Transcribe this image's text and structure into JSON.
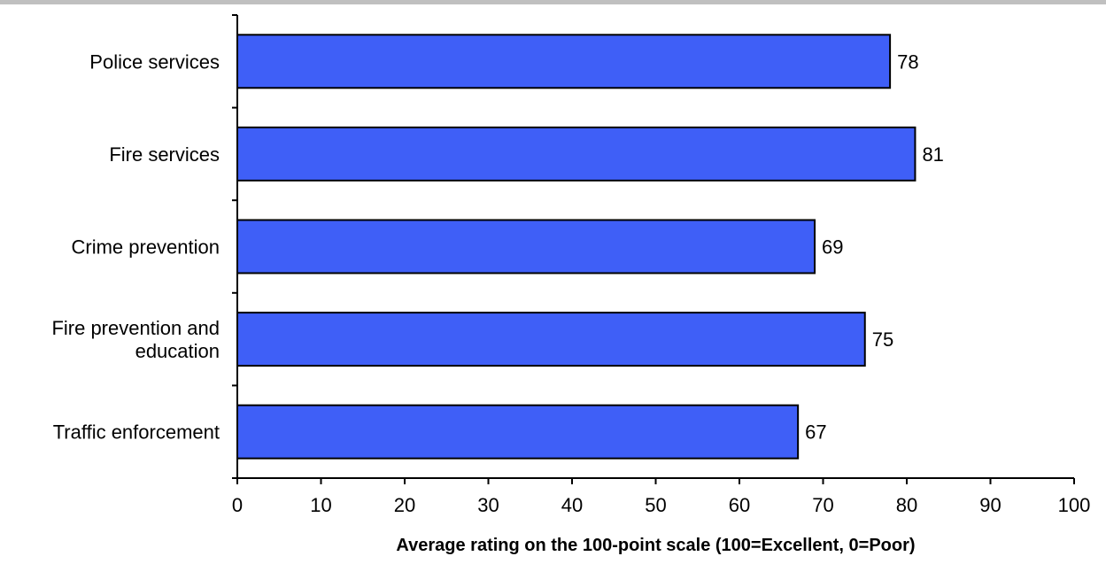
{
  "chart_data": {
    "type": "bar",
    "orientation": "horizontal",
    "categories": [
      "Police services",
      "Fire services",
      "Crime prevention",
      "Fire prevention and education",
      "Traffic enforcement"
    ],
    "category_lines": [
      [
        "Police services"
      ],
      [
        "Fire services"
      ],
      [
        "Crime prevention"
      ],
      [
        "Fire prevention and",
        "education"
      ],
      [
        "Traffic enforcement"
      ]
    ],
    "values": [
      78,
      81,
      69,
      75,
      67
    ],
    "value_labels": [
      "78",
      "81",
      "69",
      "75",
      "67"
    ],
    "xlabel": "Average rating on the 100-point scale (100=Excellent, 0=Poor)",
    "ylabel": "",
    "xlim": [
      0,
      100
    ],
    "xticks": [
      0,
      10,
      20,
      30,
      40,
      50,
      60,
      70,
      80,
      90,
      100
    ],
    "xtick_labels": [
      "0",
      "10",
      "20",
      "30",
      "40",
      "50",
      "60",
      "70",
      "80",
      "90",
      "100"
    ],
    "bar_color": "#3f5ff7",
    "grid": false,
    "legend": "none"
  }
}
